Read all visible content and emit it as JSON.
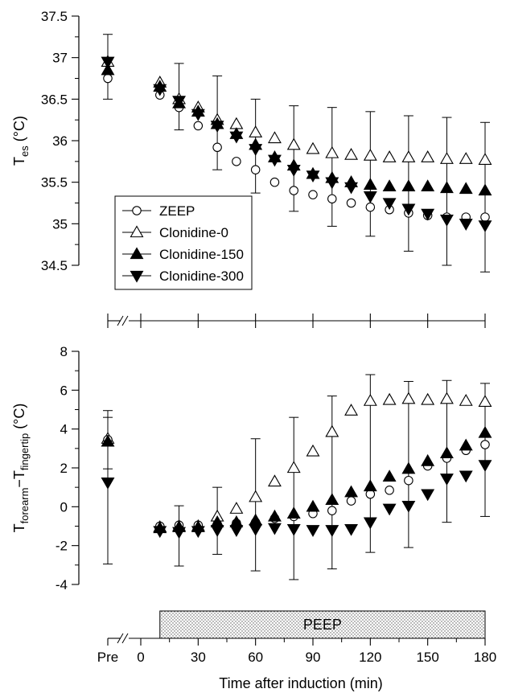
{
  "chart_data": [
    {
      "type": "scatter",
      "panel": "top",
      "ylabel": {
        "main": "T",
        "sub": "es",
        "unit": " (°C)"
      },
      "ylim": [
        34.5,
        37.5
      ],
      "yticks": [
        34.5,
        35,
        35.5,
        36,
        36.5,
        37,
        37.5
      ],
      "ytick_labels": [
        "34.5",
        "35",
        "35.5",
        "36",
        "36.5",
        "37",
        "37.5"
      ],
      "legend": {
        "placement": "lower-left",
        "entries": [
          "ZEEP",
          "Clonidine-0",
          "Clonidine-150",
          "Clonidine-300"
        ]
      },
      "series": [
        {
          "name": "ZEEP",
          "marker": "open-circle",
          "x": [
            "Pre",
            10,
            20,
            30,
            40,
            50,
            60,
            70,
            80,
            90,
            100,
            110,
            120,
            130,
            140,
            150,
            160,
            170,
            180
          ],
          "y": [
            36.75,
            36.55,
            36.4,
            36.18,
            35.92,
            35.75,
            35.65,
            35.5,
            35.4,
            35.35,
            35.3,
            35.25,
            35.2,
            35.17,
            35.13,
            35.1,
            35.08,
            35.08,
            35.08
          ]
        },
        {
          "name": "Clonidine-0",
          "marker": "open-triangle-up",
          "x": [
            "Pre",
            10,
            20,
            30,
            40,
            50,
            60,
            70,
            80,
            90,
            100,
            110,
            120,
            130,
            140,
            150,
            160,
            170,
            180
          ],
          "y": [
            36.95,
            36.7,
            36.5,
            36.4,
            36.25,
            36.2,
            36.1,
            36.03,
            35.95,
            35.9,
            35.85,
            35.83,
            35.82,
            35.8,
            35.8,
            35.8,
            35.78,
            35.78,
            35.77
          ]
        },
        {
          "name": "Clonidine-150",
          "marker": "filled-triangle-up",
          "x": [
            "Pre",
            10,
            20,
            30,
            40,
            50,
            60,
            70,
            80,
            90,
            100,
            110,
            120,
            130,
            140,
            150,
            160,
            170,
            180
          ],
          "y": [
            36.85,
            36.65,
            36.45,
            36.35,
            36.2,
            36.08,
            35.95,
            35.8,
            35.7,
            35.6,
            35.55,
            35.5,
            35.47,
            35.45,
            35.45,
            35.45,
            35.43,
            35.42,
            35.4
          ]
        },
        {
          "name": "Clonidine-300",
          "marker": "filled-triangle-down",
          "x": [
            "Pre",
            10,
            20,
            30,
            40,
            50,
            60,
            70,
            80,
            90,
            100,
            110,
            120,
            130,
            140,
            150,
            160,
            170,
            180
          ],
          "y": [
            36.95,
            36.62,
            36.48,
            36.32,
            36.18,
            36.05,
            35.9,
            35.77,
            35.65,
            35.58,
            35.5,
            35.44,
            35.33,
            35.25,
            35.18,
            35.12,
            35.05,
            35.0,
            34.98
          ]
        }
      ],
      "error_bars": [
        {
          "x": "Pre",
          "low": 36.5,
          "high": 37.28
        },
        {
          "x": 20,
          "low": 36.13,
          "high": 36.93
        },
        {
          "x": 40,
          "low": 35.65,
          "high": 36.78
        },
        {
          "x": 60,
          "low": 35.37,
          "high": 36.5
        },
        {
          "x": 80,
          "low": 35.15,
          "high": 36.42
        },
        {
          "x": 100,
          "low": 34.97,
          "high": 36.4
        },
        {
          "x": 120,
          "low": 34.85,
          "high": 36.35
        },
        {
          "x": 140,
          "low": 34.67,
          "high": 36.3
        },
        {
          "x": 160,
          "low": 34.5,
          "high": 36.28
        },
        {
          "x": 180,
          "low": 34.42,
          "high": 36.22
        }
      ]
    },
    {
      "type": "scatter",
      "panel": "bottom",
      "ylabel": {
        "main1": "T",
        "sub1": "forearm",
        "dash": "−",
        "main2": "T",
        "sub2": "fingertip",
        "unit": " (°C)"
      },
      "ylim": [
        -4,
        8
      ],
      "yticks": [
        -4,
        -2,
        0,
        2,
        4,
        6,
        8
      ],
      "ytick_labels": [
        "-4",
        "-2",
        "0",
        "2",
        "4",
        "6",
        "8"
      ],
      "xlabel": "Time after induction (min)",
      "xtick_labels": [
        "Pre",
        "0",
        "30",
        "60",
        "90",
        "120",
        "150",
        "180"
      ],
      "xticks": [
        "Pre",
        0,
        30,
        60,
        90,
        120,
        150,
        180
      ],
      "annotation": {
        "label": "PEEP",
        "x_start": 10,
        "x_end": 180
      },
      "series": [
        {
          "name": "ZEEP",
          "marker": "open-circle",
          "x": [
            "Pre",
            10,
            20,
            30,
            40,
            50,
            60,
            70,
            80,
            90,
            100,
            110,
            120,
            130,
            140,
            150,
            160,
            170,
            180
          ],
          "y": [
            3.45,
            -1.0,
            -0.95,
            -0.95,
            -0.9,
            -0.85,
            -0.8,
            -0.6,
            -0.5,
            -0.35,
            -0.2,
            0.3,
            0.65,
            0.85,
            1.35,
            2.1,
            2.5,
            2.9,
            3.2
          ]
        },
        {
          "name": "Clonidine-0",
          "marker": "open-triangle-up",
          "x": [
            "Pre",
            10,
            20,
            30,
            40,
            50,
            60,
            70,
            80,
            90,
            100,
            110,
            120,
            130,
            140,
            150,
            160,
            170,
            180
          ],
          "y": [
            3.5,
            -1.05,
            -1.0,
            -1.0,
            -0.5,
            -0.1,
            0.5,
            1.3,
            2.0,
            2.85,
            3.85,
            4.95,
            5.45,
            5.5,
            5.55,
            5.5,
            5.55,
            5.45,
            5.4
          ]
        },
        {
          "name": "Clonidine-150",
          "marker": "filled-triangle-up",
          "x": [
            "Pre",
            10,
            20,
            30,
            40,
            50,
            60,
            70,
            80,
            90,
            100,
            110,
            120,
            130,
            140,
            150,
            160,
            170,
            180
          ],
          "y": [
            3.35,
            -1.1,
            -1.05,
            -1.05,
            -0.8,
            -0.8,
            -0.7,
            -0.5,
            -0.35,
            0.0,
            0.35,
            0.75,
            1.05,
            1.55,
            1.95,
            2.35,
            2.75,
            3.15,
            3.8
          ]
        },
        {
          "name": "Clonidine-300",
          "marker": "filled-triangle-down",
          "x": [
            "Pre",
            10,
            20,
            30,
            40,
            50,
            60,
            70,
            80,
            90,
            100,
            110,
            120,
            130,
            140,
            150,
            160,
            170,
            180
          ],
          "y": [
            1.25,
            -1.25,
            -1.3,
            -1.25,
            -1.2,
            -1.2,
            -1.15,
            -1.1,
            -1.15,
            -1.2,
            -1.2,
            -1.15,
            -0.8,
            -0.1,
            0.05,
            0.65,
            1.45,
            1.6,
            2.15
          ]
        }
      ],
      "error_bars": [
        {
          "x": "Pre",
          "low": -2.95,
          "high": 4.95
        },
        {
          "x": "Pre",
          "low": 1.95,
          "high": 4.6
        },
        {
          "x": 20,
          "low": -3.05,
          "high": 0.05
        },
        {
          "x": 40,
          "low": -2.45,
          "high": 1.0
        },
        {
          "x": 60,
          "low": -3.3,
          "high": 3.5
        },
        {
          "x": 80,
          "low": -3.75,
          "high": 4.6
        },
        {
          "x": 100,
          "low": -3.2,
          "high": 5.7
        },
        {
          "x": 120,
          "low": -2.35,
          "high": 6.8
        },
        {
          "x": 140,
          "low": -2.1,
          "high": 6.45
        },
        {
          "x": 160,
          "low": -0.8,
          "high": 6.5
        },
        {
          "x": 180,
          "low": -0.5,
          "high": 6.35
        }
      ]
    }
  ]
}
